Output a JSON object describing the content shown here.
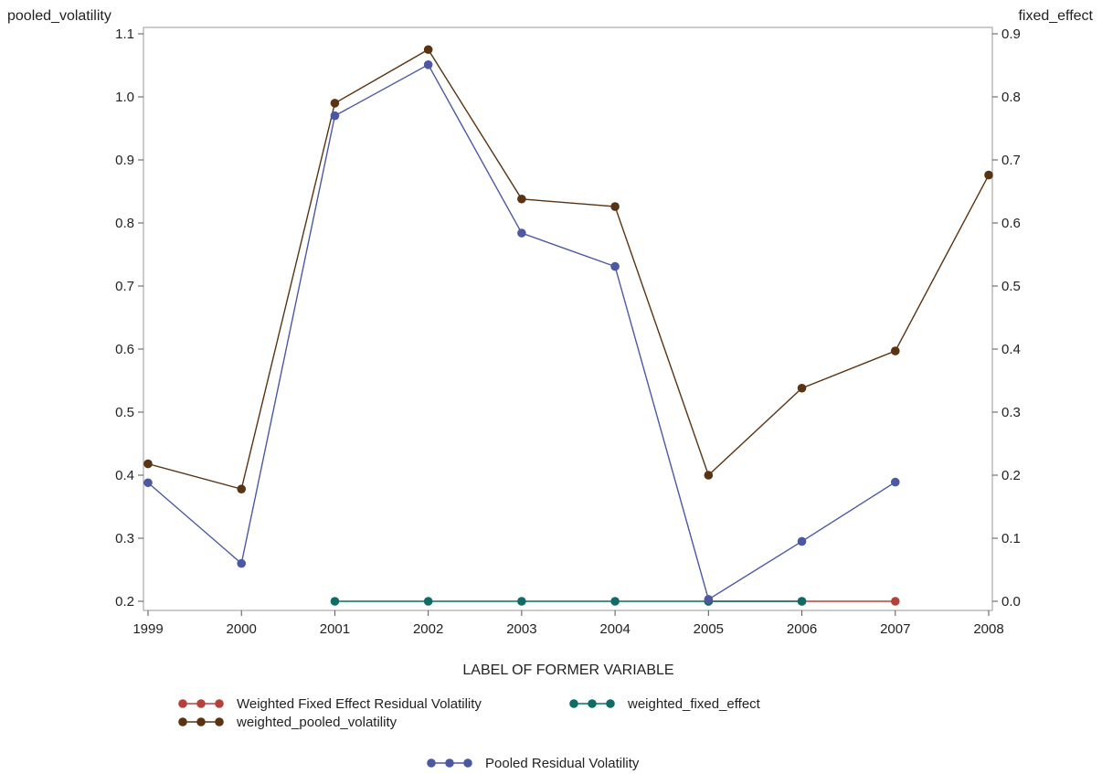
{
  "chart_data": {
    "type": "line",
    "xlabel": "LABEL OF FORMER VARIABLE",
    "ylabel_left": "pooled_volatility",
    "ylabel_right": "fixed_effect",
    "categories": [
      "1999",
      "2000",
      "2001",
      "2002",
      "2003",
      "2004",
      "2005",
      "2006",
      "2007",
      "2008"
    ],
    "ylim_left": [
      0.2,
      1.1
    ],
    "ylim_right": [
      0.0,
      0.9
    ],
    "yticks_left": [
      "0.2",
      "0.3",
      "0.4",
      "0.5",
      "0.6",
      "0.7",
      "0.8",
      "0.9",
      "1.0",
      "1.1"
    ],
    "yticks_right": [
      "0.0",
      "0.1",
      "0.2",
      "0.3",
      "0.4",
      "0.5",
      "0.6",
      "0.7",
      "0.8",
      "0.9"
    ],
    "grid": false,
    "legend_position": "bottom",
    "series": [
      {
        "name": "Weighted Fixed Effect Residual Volatility",
        "color": "#b5423a",
        "axis": "right",
        "values": [
          null,
          null,
          null,
          null,
          null,
          null,
          0.0,
          0.0,
          0.0,
          null
        ]
      },
      {
        "name": "weighted_fixed_effect",
        "color": "#0f6b65",
        "axis": "right",
        "values": [
          null,
          null,
          0.0,
          0.0,
          0.0,
          0.0,
          0.0,
          0.0,
          null,
          null
        ]
      },
      {
        "name": "weighted_pooled_volatility",
        "color": "#5a3312",
        "axis": "left",
        "values": [
          0.418,
          0.378,
          0.99,
          1.075,
          0.838,
          0.826,
          0.4,
          0.538,
          0.597,
          0.876
        ]
      },
      {
        "name": "Pooled Residual Volatility",
        "color": "#4b58a2",
        "axis": "left",
        "values": [
          0.388,
          0.26,
          0.97,
          1.051,
          0.784,
          0.731,
          0.203,
          0.295,
          0.389,
          null
        ]
      }
    ]
  }
}
